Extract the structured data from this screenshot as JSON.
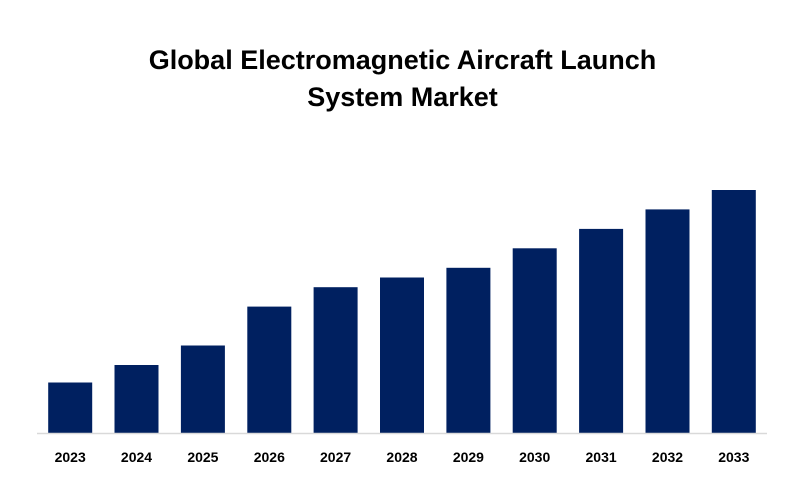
{
  "chart_data": {
    "type": "bar",
    "title_lines": [
      "Global Electromagnetic Aircraft Launch",
      "System Market"
    ],
    "categories": [
      "2023",
      "2024",
      "2025",
      "2026",
      "2027",
      "2028",
      "2029",
      "2030",
      "2031",
      "2032",
      "2033"
    ],
    "values": [
      2.6,
      3.5,
      4.5,
      6.5,
      7.5,
      8.0,
      8.5,
      9.5,
      10.5,
      11.5,
      12.5
    ],
    "ylim": [
      0,
      12.5
    ],
    "xlabel": "",
    "ylabel": "",
    "grid": false,
    "legend": "none",
    "bar_color": "#002060",
    "axis_color": "#d9d9d9"
  }
}
